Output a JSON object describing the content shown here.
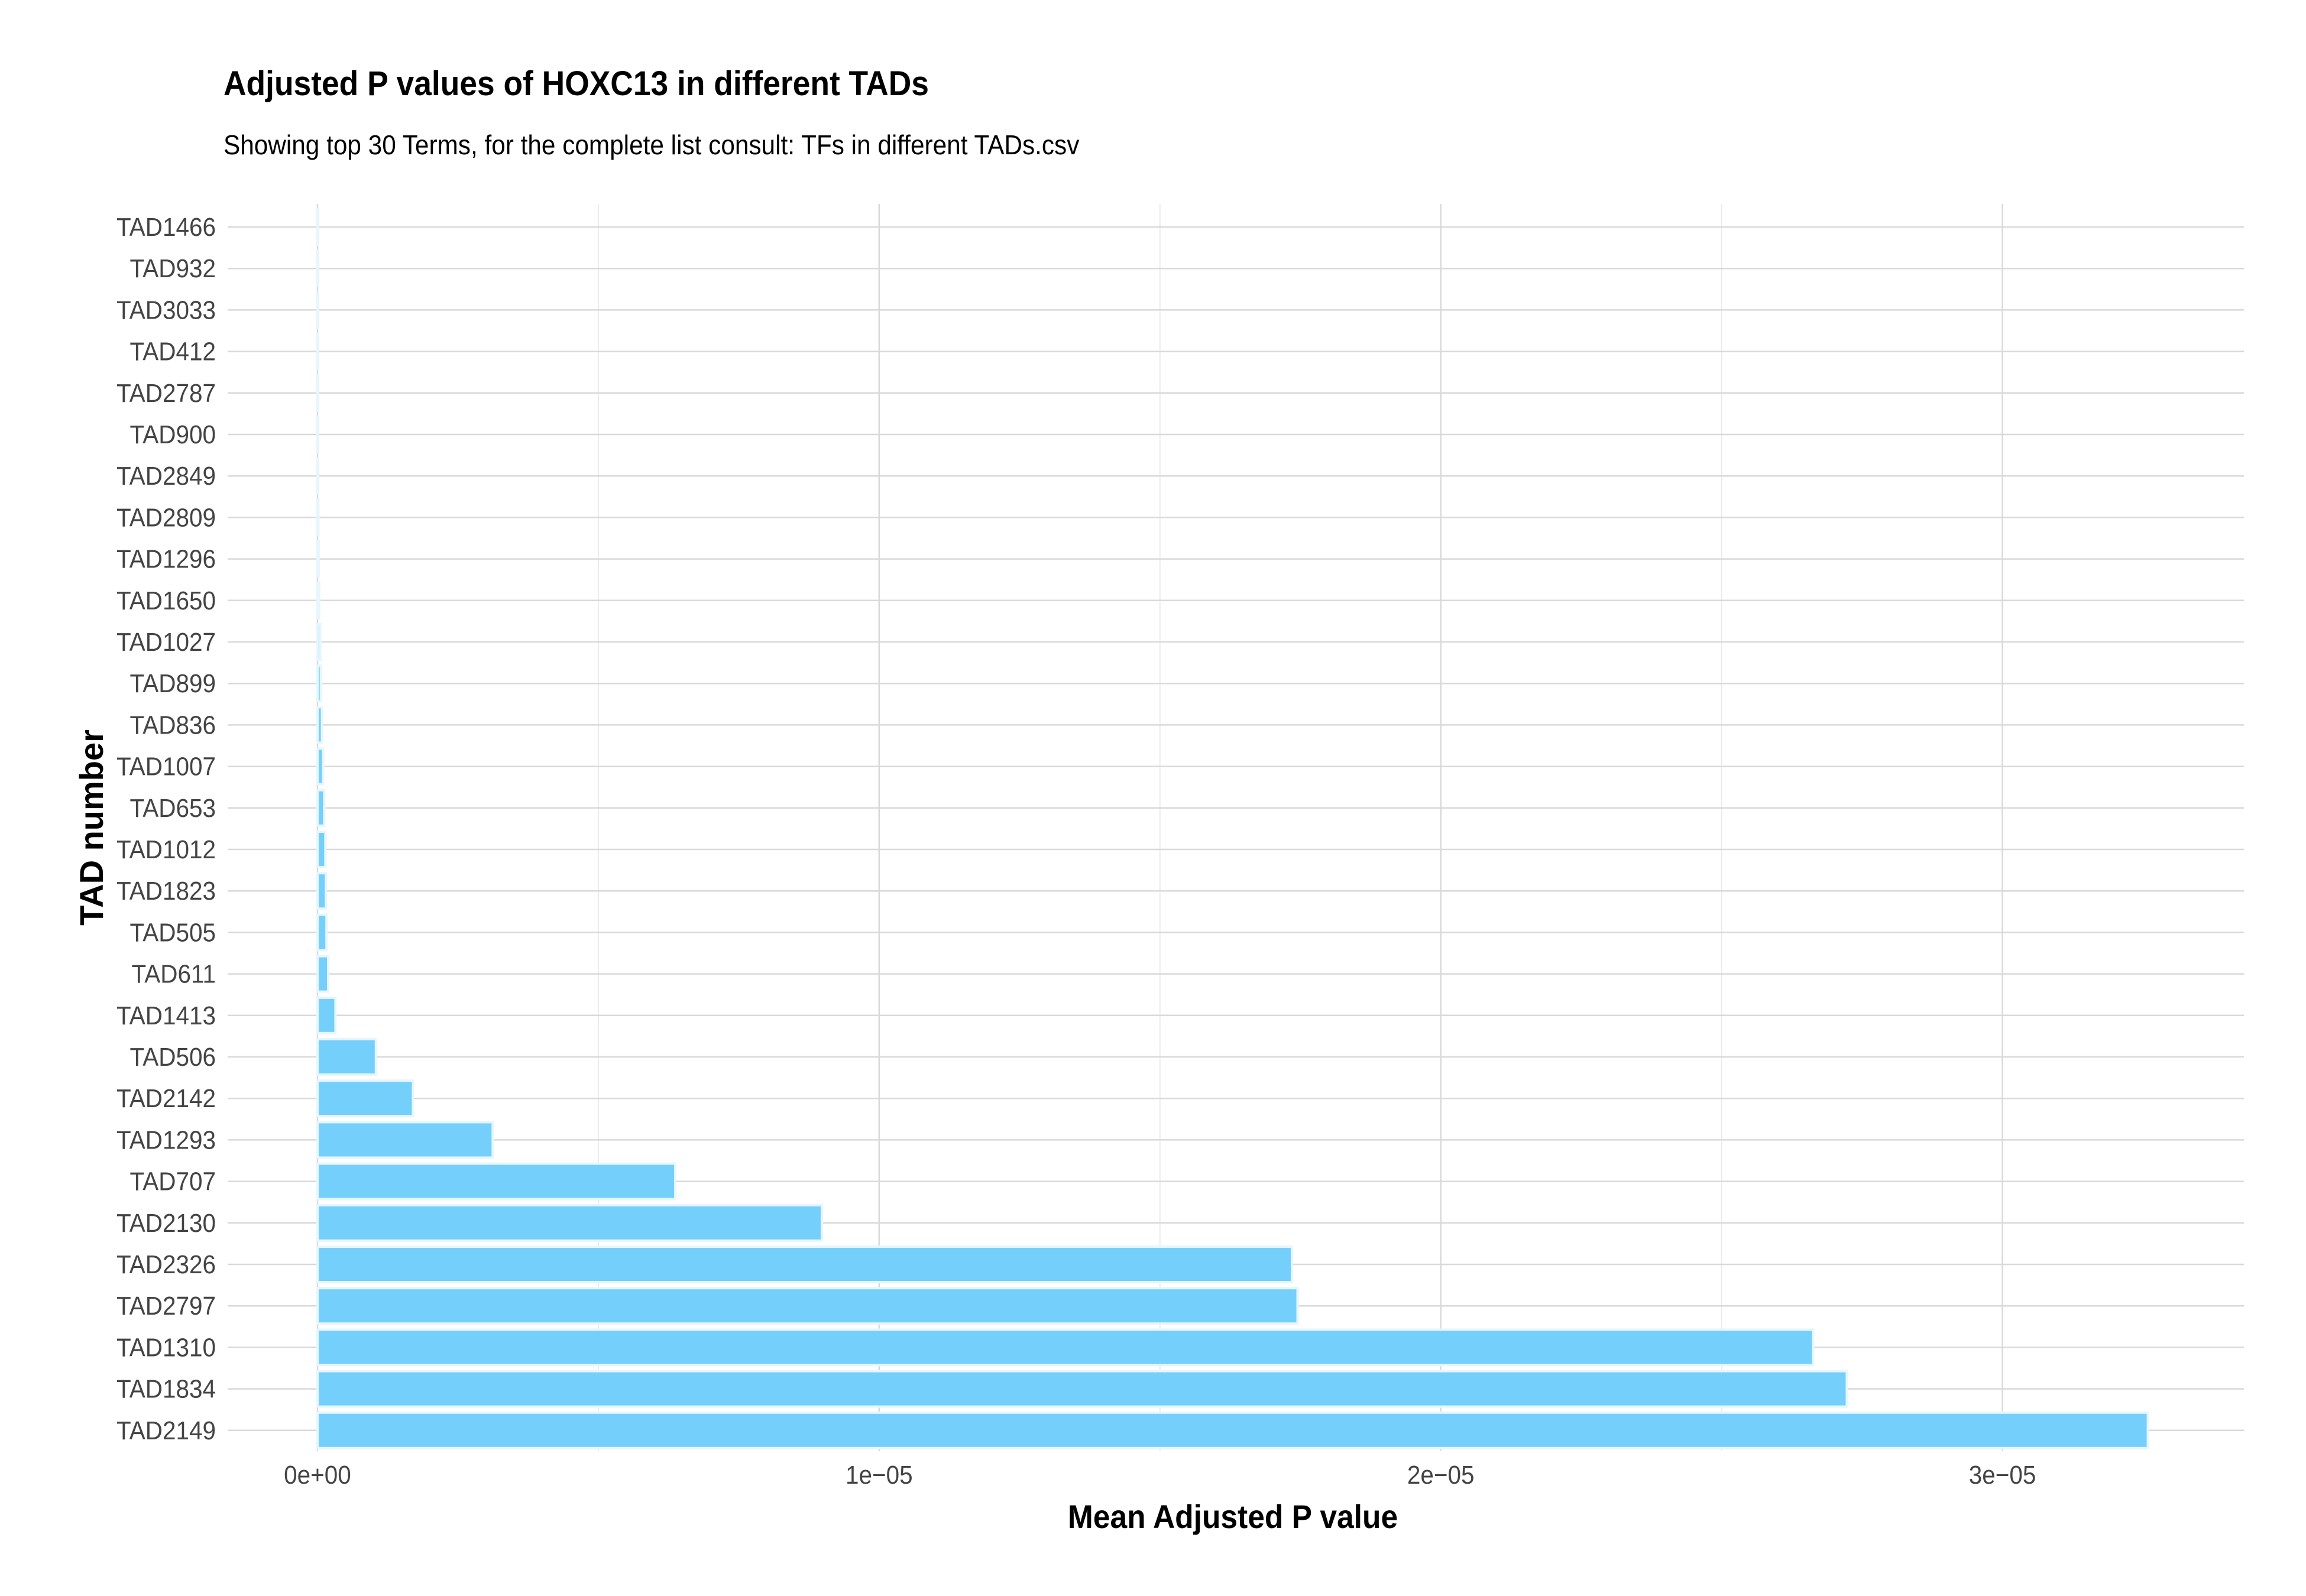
{
  "chart_data": {
    "type": "bar",
    "orientation": "horizontal",
    "title": "Adjusted P values of HOXC13 in different TADs",
    "subtitle": "Showing top 30 Terms, for the complete list consult: TFs in different TADs.csv",
    "xlabel": "Mean Adjusted P value",
    "ylabel": "TAD number",
    "xlim": [
      -1.6e-06,
      3.43e-05
    ],
    "x_ticks": [
      0,
      1e-05,
      2e-05,
      3e-05
    ],
    "x_tick_labels": [
      "0e+00",
      "1e−05",
      "2e−05",
      "3e−05"
    ],
    "grid": true,
    "bar_color": "#75CFFB",
    "bar_edge_color": "#E6F6FE",
    "categories": [
      "TAD1466",
      "TAD932",
      "TAD3033",
      "TAD412",
      "TAD2787",
      "TAD900",
      "TAD2849",
      "TAD2809",
      "TAD1296",
      "TAD1650",
      "TAD1027",
      "TAD899",
      "TAD836",
      "TAD1007",
      "TAD653",
      "TAD1012",
      "TAD1823",
      "TAD505",
      "TAD611",
      "TAD1413",
      "TAD506",
      "TAD2142",
      "TAD1293",
      "TAD707",
      "TAD2130",
      "TAD2326",
      "TAD2797",
      "TAD1310",
      "TAD1834",
      "TAD2149"
    ],
    "values": [
      1e-09,
      2e-09,
      3e-09,
      4e-09,
      5e-09,
      7e-09,
      1e-08,
      1.5e-08,
      2e-08,
      3e-08,
      5e-08,
      6e-08,
      8e-08,
      1e-07,
      1.2e-07,
      1.4e-07,
      1.5e-07,
      1.6e-07,
      1.9e-07,
      3.2e-07,
      1.04e-06,
      1.7e-06,
      3.12e-06,
      6.37e-06,
      8.98e-06,
      1.735e-05,
      1.745e-05,
      2.663e-05,
      2.723e-05,
      3.259e-05
    ]
  }
}
